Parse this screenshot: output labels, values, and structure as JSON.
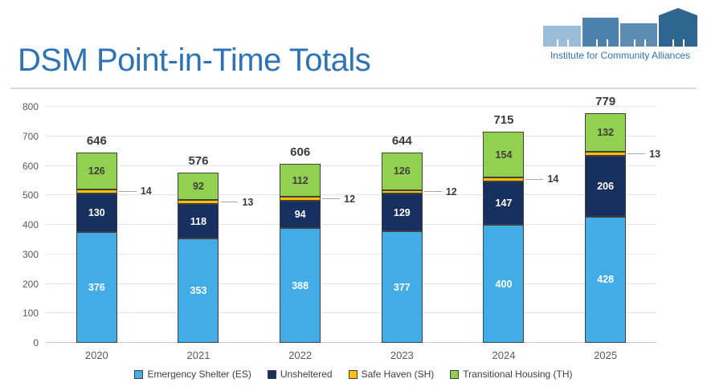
{
  "header": {
    "title": "DSM Point-in-Time Totals",
    "logo": {
      "caption": "Institute for Community Alliances",
      "building_colors": [
        "#9ABCD8",
        "#4E81AC",
        "#5D8CB3",
        "#2E6690"
      ],
      "text_color": "#2E75B6"
    }
  },
  "chart_data": {
    "type": "bar",
    "stacked": true,
    "title": "DSM Point-in-Time Totals",
    "categories": [
      "2020",
      "2021",
      "2022",
      "2023",
      "2024",
      "2025"
    ],
    "series": [
      {
        "name": "Emergency Shelter (ES)",
        "color": "#41ACE6",
        "label_color": "#FFFFFF",
        "label_style": "inside",
        "values": [
          376,
          353,
          388,
          377,
          400,
          428
        ]
      },
      {
        "name": "Unsheltered",
        "color": "#17305F",
        "label_color": "#FFFFFF",
        "label_style": "inside",
        "values": [
          130,
          118,
          94,
          129,
          147,
          206
        ]
      },
      {
        "name": "Safe Haven (SH)",
        "color": "#FFC000",
        "label_color": "#3B3B3B",
        "label_style": "leader",
        "values": [
          14,
          13,
          12,
          12,
          14,
          13
        ]
      },
      {
        "name": "Transitional Housing (TH)",
        "color": "#92D050",
        "label_color": "#404040",
        "label_style": "inside",
        "values": [
          126,
          92,
          112,
          126,
          154,
          132
        ]
      }
    ],
    "totals": [
      646,
      576,
      606,
      644,
      715,
      779
    ],
    "xlabel": "",
    "ylabel": "",
    "ylim": [
      0,
      800
    ],
    "yticks": [
      0,
      100,
      200,
      300,
      400,
      500,
      600,
      700,
      800
    ],
    "grid": true,
    "legend_position": "bottom"
  }
}
